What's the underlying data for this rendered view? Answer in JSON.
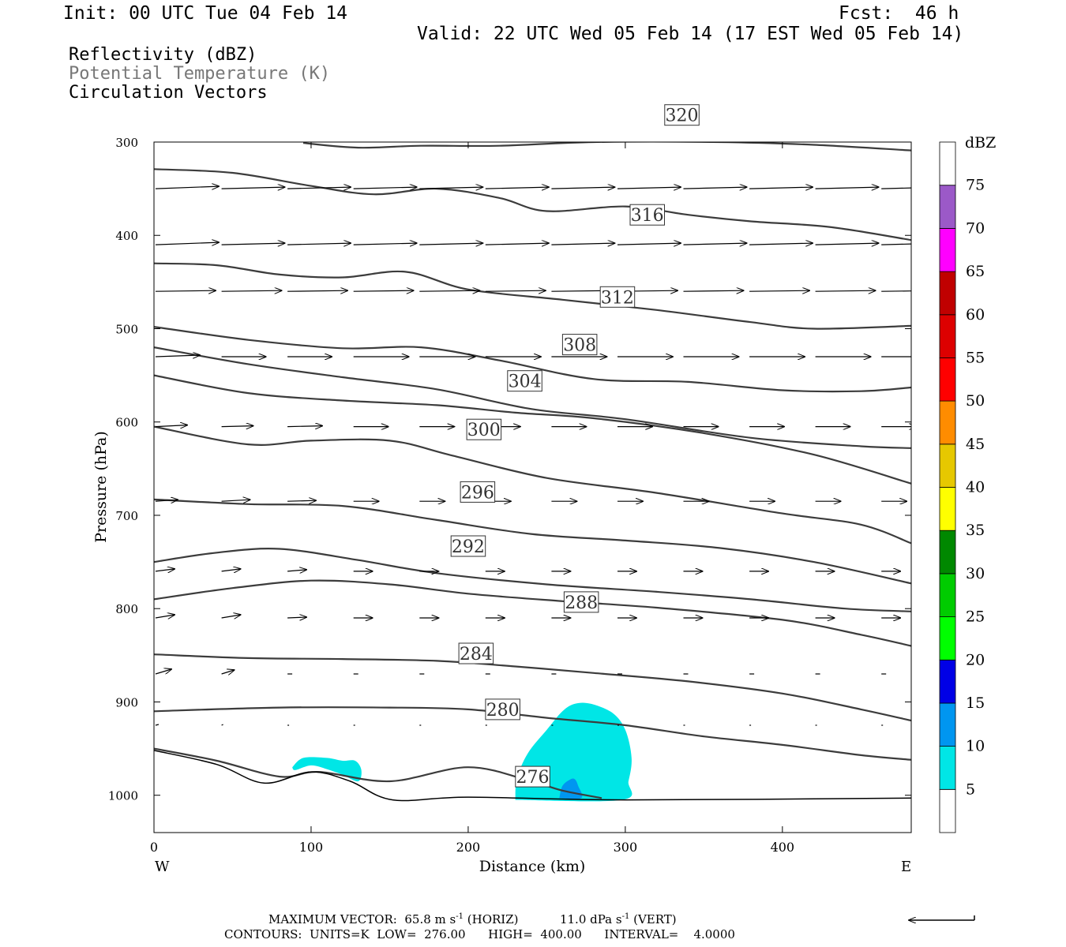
{
  "header": {
    "init": "Init: 00 UTC Tue 04 Feb 14",
    "fcst": "Fcst:  46 h",
    "valid": "Valid: 22 UTC Wed 05 Feb 14 (17 EST Wed 05 Feb 14)"
  },
  "legend": {
    "line1": "Reflectivity (dBZ)",
    "line2": "Potential Temperature (K)",
    "line3": "Circulation Vectors"
  },
  "colors": {
    "theta_contour": "#3c3c3c",
    "terrain": "#000000",
    "refl_5": "#00e6e6",
    "refl_10": "#0096f0",
    "header_secondary": "#777777"
  },
  "footer": {
    "max_vector_label": "MAXIMUM VECTOR:",
    "horiz_value": "65.8 m s",
    "horiz_unit": "(HORIZ)",
    "vert_value": "11.0 dPa s",
    "vert_unit": "(VERT)",
    "exponent": "-1",
    "contours": "CONTOURS:  UNITS=K  LOW=  276.00      HIGH=  400.00      INTERVAL=    4.0000"
  },
  "chart_data": {
    "type": "cross-section",
    "xlabel": "Distance (km)",
    "ylabel": "Pressure (hPa)",
    "xlim": [
      0,
      482
    ],
    "ylim": [
      1040,
      300
    ],
    "x_ticks": [
      0,
      100,
      200,
      300,
      400
    ],
    "y_ticks": [
      300,
      400,
      500,
      600,
      700,
      800,
      900,
      1000
    ],
    "x_end_labels": {
      "left": "W",
      "right": "E"
    },
    "colorbar": {
      "title": "dBZ",
      "levels": [
        5,
        10,
        15,
        20,
        25,
        30,
        35,
        40,
        45,
        50,
        55,
        60,
        65,
        70,
        75
      ],
      "colors": [
        "#00e6e6",
        "#0096f0",
        "#0000e6",
        "#00ff00",
        "#00cc00",
        "#008800",
        "#ffff00",
        "#e6c800",
        "#ff8c00",
        "#ff0000",
        "#dd0000",
        "#c00000",
        "#ff00ff",
        "#9b59c8",
        "#ffffff"
      ]
    },
    "theta_contours": [
      {
        "label": "276",
        "label_at": [
          241,
          980
        ],
        "points": [
          [
            0,
            950
          ],
          [
            40,
            963
          ],
          [
            80,
            980
          ],
          [
            105,
            975
          ],
          [
            150,
            985
          ],
          [
            200,
            970
          ],
          [
            240,
            985
          ],
          [
            260,
            995
          ],
          [
            285,
            1003
          ]
        ]
      },
      {
        "label": "280",
        "label_at": [
          222,
          908
        ],
        "points": [
          [
            0,
            910
          ],
          [
            80,
            906
          ],
          [
            150,
            906
          ],
          [
            200,
            908
          ],
          [
            250,
            917
          ],
          [
            300,
            925
          ],
          [
            350,
            937
          ],
          [
            400,
            946
          ],
          [
            450,
            957
          ],
          [
            482,
            962
          ]
        ]
      },
      {
        "label": "284",
        "label_at": [
          205,
          848
        ],
        "points": [
          [
            0,
            849
          ],
          [
            60,
            853
          ],
          [
            120,
            854
          ],
          [
            180,
            856
          ],
          [
            230,
            862
          ],
          [
            280,
            869
          ],
          [
            340,
            878
          ],
          [
            400,
            891
          ],
          [
            450,
            908
          ],
          [
            482,
            920
          ]
        ]
      },
      {
        "label": "288",
        "label_at": [
          272,
          793
        ],
        "points": [
          [
            0,
            790
          ],
          [
            50,
            778
          ],
          [
            100,
            770
          ],
          [
            150,
            774
          ],
          [
            200,
            784
          ],
          [
            260,
            792
          ],
          [
            320,
            799
          ],
          [
            400,
            812
          ],
          [
            450,
            828
          ],
          [
            482,
            840
          ]
        ]
      },
      {
        "label": "292",
        "label_at": [
          200,
          733
        ],
        "points": [
          [
            0,
            750
          ],
          [
            40,
            740
          ],
          [
            80,
            736
          ],
          [
            130,
            748
          ],
          [
            180,
            762
          ],
          [
            250,
            774
          ],
          [
            320,
            782
          ],
          [
            380,
            790
          ],
          [
            440,
            800
          ],
          [
            482,
            803
          ]
        ]
      },
      {
        "label": "296",
        "label_at": [
          206,
          675
        ],
        "points": [
          [
            0,
            683
          ],
          [
            60,
            688
          ],
          [
            120,
            690
          ],
          [
            180,
            705
          ],
          [
            240,
            720
          ],
          [
            300,
            727
          ],
          [
            360,
            735
          ],
          [
            420,
            750
          ],
          [
            482,
            773
          ]
        ]
      },
      {
        "label": "300",
        "label_at": [
          210,
          608
        ],
        "points": [
          [
            0,
            605
          ],
          [
            60,
            624
          ],
          [
            100,
            620
          ],
          [
            150,
            620
          ],
          [
            190,
            636
          ],
          [
            250,
            660
          ],
          [
            320,
            676
          ],
          [
            400,
            698
          ],
          [
            450,
            710
          ],
          [
            482,
            730
          ]
        ]
      },
      {
        "label": "304",
        "label_at": [
          236,
          556
        ],
        "points": [
          [
            0,
            550
          ],
          [
            60,
            569
          ],
          [
            120,
            577
          ],
          [
            180,
            582
          ],
          [
            230,
            590
          ],
          [
            280,
            596
          ],
          [
            350,
            612
          ],
          [
            420,
            635
          ],
          [
            482,
            666
          ]
        ]
      },
      {
        "label": "308",
        "label_at": [
          271,
          517
        ],
        "points": [
          [
            0,
            520
          ],
          [
            60,
            538
          ],
          [
            120,
            552
          ],
          [
            180,
            565
          ],
          [
            240,
            586
          ],
          [
            300,
            597
          ],
          [
            380,
            617
          ],
          [
            450,
            626
          ],
          [
            482,
            628
          ]
        ]
      },
      {
        "label": "312",
        "label_at": [
          295,
          466
        ],
        "points": [
          [
            0,
            498
          ],
          [
            60,
            512
          ],
          [
            120,
            521
          ],
          [
            170,
            520
          ],
          [
            220,
            534
          ],
          [
            280,
            554
          ],
          [
            340,
            557
          ],
          [
            400,
            566
          ],
          [
            450,
            567
          ],
          [
            482,
            563
          ]
        ]
      },
      {
        "label": "316",
        "label_at": [
          314,
          378
        ],
        "points": [
          [
            0,
            430
          ],
          [
            40,
            432
          ],
          [
            80,
            442
          ],
          [
            120,
            445
          ],
          [
            160,
            439
          ],
          [
            200,
            458
          ],
          [
            260,
            469
          ],
          [
            320,
            480
          ],
          [
            380,
            493
          ],
          [
            420,
            500
          ],
          [
            482,
            497
          ]
        ]
      },
      {
        "label": "320",
        "label_at": [
          336,
          271
        ],
        "points": [
          [
            0,
            329
          ],
          [
            50,
            333
          ],
          [
            100,
            347
          ],
          [
            140,
            356
          ],
          [
            180,
            350
          ],
          [
            220,
            360
          ],
          [
            250,
            374
          ],
          [
            300,
            369
          ],
          [
            340,
            378
          ],
          [
            380,
            385
          ],
          [
            430,
            391
          ],
          [
            482,
            405
          ]
        ]
      },
      {
        "label": "",
        "label_at": null,
        "points": [
          [
            95,
            301
          ],
          [
            130,
            306
          ],
          [
            170,
            304
          ],
          [
            220,
            304
          ],
          [
            280,
            300
          ],
          [
            360,
            300
          ],
          [
            420,
            303
          ],
          [
            482,
            309
          ]
        ]
      }
    ],
    "terrain": {
      "points": [
        [
          0,
          952
        ],
        [
          40,
          967
        ],
        [
          70,
          987
        ],
        [
          100,
          975
        ],
        [
          125,
          985
        ],
        [
          152,
          1005
        ],
        [
          200,
          1002
        ],
        [
          300,
          1005
        ],
        [
          482,
          1003
        ]
      ]
    },
    "reflectivity_areas": [
      {
        "dbz": 5,
        "points": [
          [
            88,
            970
          ],
          [
            95,
            960
          ],
          [
            110,
            960
          ],
          [
            120,
            963
          ],
          [
            128,
            963
          ],
          [
            132,
            973
          ],
          [
            130,
            985
          ],
          [
            120,
            978
          ],
          [
            110,
            972
          ],
          [
            100,
            968
          ],
          [
            90,
            973
          ]
        ]
      },
      {
        "dbz": 5,
        "points": [
          [
            230,
            1005
          ],
          [
            231,
            982
          ],
          [
            238,
            955
          ],
          [
            250,
            930
          ],
          [
            260,
            910
          ],
          [
            268,
            902
          ],
          [
            278,
            902
          ],
          [
            292,
            912
          ],
          [
            300,
            930
          ],
          [
            304,
            960
          ],
          [
            302,
            985
          ],
          [
            298,
            1005
          ]
        ]
      },
      {
        "dbz": 10,
        "points": [
          [
            258,
            1003
          ],
          [
            260,
            990
          ],
          [
            265,
            983
          ],
          [
            268,
            983
          ],
          [
            270,
            990
          ],
          [
            272,
            1003
          ]
        ]
      }
    ],
    "circulation_vectors": {
      "levels_hpa": [
        350,
        410,
        460,
        530,
        605,
        685,
        760,
        810,
        870,
        925
      ],
      "columns_km": [
        0,
        42,
        84,
        126,
        168,
        210,
        252,
        294,
        336,
        378,
        420,
        462
      ],
      "u_scaled": [
        [
          40,
          40,
          40,
          40,
          40,
          40,
          40,
          40,
          40,
          40,
          40,
          40
        ],
        [
          40,
          40,
          40,
          40,
          40,
          40,
          40,
          40,
          40,
          40,
          40,
          40
        ],
        [
          38,
          38,
          38,
          38,
          38,
          38,
          38,
          38,
          38,
          38,
          38,
          38
        ],
        [
          28,
          28,
          28,
          35,
          35,
          35,
          35,
          35,
          35,
          35,
          35,
          35
        ],
        [
          20,
          20,
          22,
          22,
          22,
          22,
          22,
          22,
          22,
          22,
          22,
          22
        ],
        [
          14,
          18,
          18,
          16,
          16,
          16,
          16,
          16,
          16,
          16,
          16,
          16
        ],
        [
          12,
          12,
          12,
          12,
          12,
          12,
          12,
          12,
          12,
          12,
          12,
          12
        ],
        [
          12,
          12,
          12,
          12,
          12,
          12,
          12,
          12,
          12,
          12,
          12,
          12
        ],
        [
          10,
          8,
          3,
          3,
          3,
          3,
          3,
          3,
          3,
          3,
          3,
          3
        ],
        [
          2,
          1,
          1,
          1,
          1,
          1,
          1,
          1,
          1,
          1,
          1,
          1
        ]
      ],
      "w_scaled": [
        [
          -3,
          -2,
          -2,
          -2,
          -2,
          -2,
          -2,
          -2,
          -2,
          -2,
          -2,
          -2
        ],
        [
          -3,
          -2,
          -2,
          -2,
          -2,
          -2,
          -2,
          -2,
          -2,
          -2,
          -2,
          -2
        ],
        [
          -1,
          -1,
          -1,
          -1,
          -1,
          -1,
          -1,
          -1,
          -1,
          -1,
          -1,
          -1
        ],
        [
          -2,
          0,
          0,
          0,
          0,
          0,
          0,
          0,
          0,
          0,
          0,
          0
        ],
        [
          -2,
          -1,
          -1,
          0,
          0,
          0,
          0,
          0,
          0,
          0,
          0,
          0
        ],
        [
          -2,
          -2,
          -1,
          0,
          0,
          0,
          0,
          0,
          0,
          0,
          0,
          0
        ],
        [
          -3,
          -3,
          -2,
          0,
          0,
          0,
          0,
          0,
          0,
          0,
          0,
          0
        ],
        [
          -4,
          -4,
          -1,
          0,
          0,
          0,
          0,
          0,
          0,
          0,
          0,
          0
        ],
        [
          -6,
          -5,
          0,
          0,
          0,
          0,
          0,
          0,
          0,
          0,
          0,
          0
        ],
        [
          -1,
          -1,
          0,
          0,
          0,
          0,
          0,
          0,
          0,
          0,
          0,
          0
        ]
      ]
    }
  }
}
